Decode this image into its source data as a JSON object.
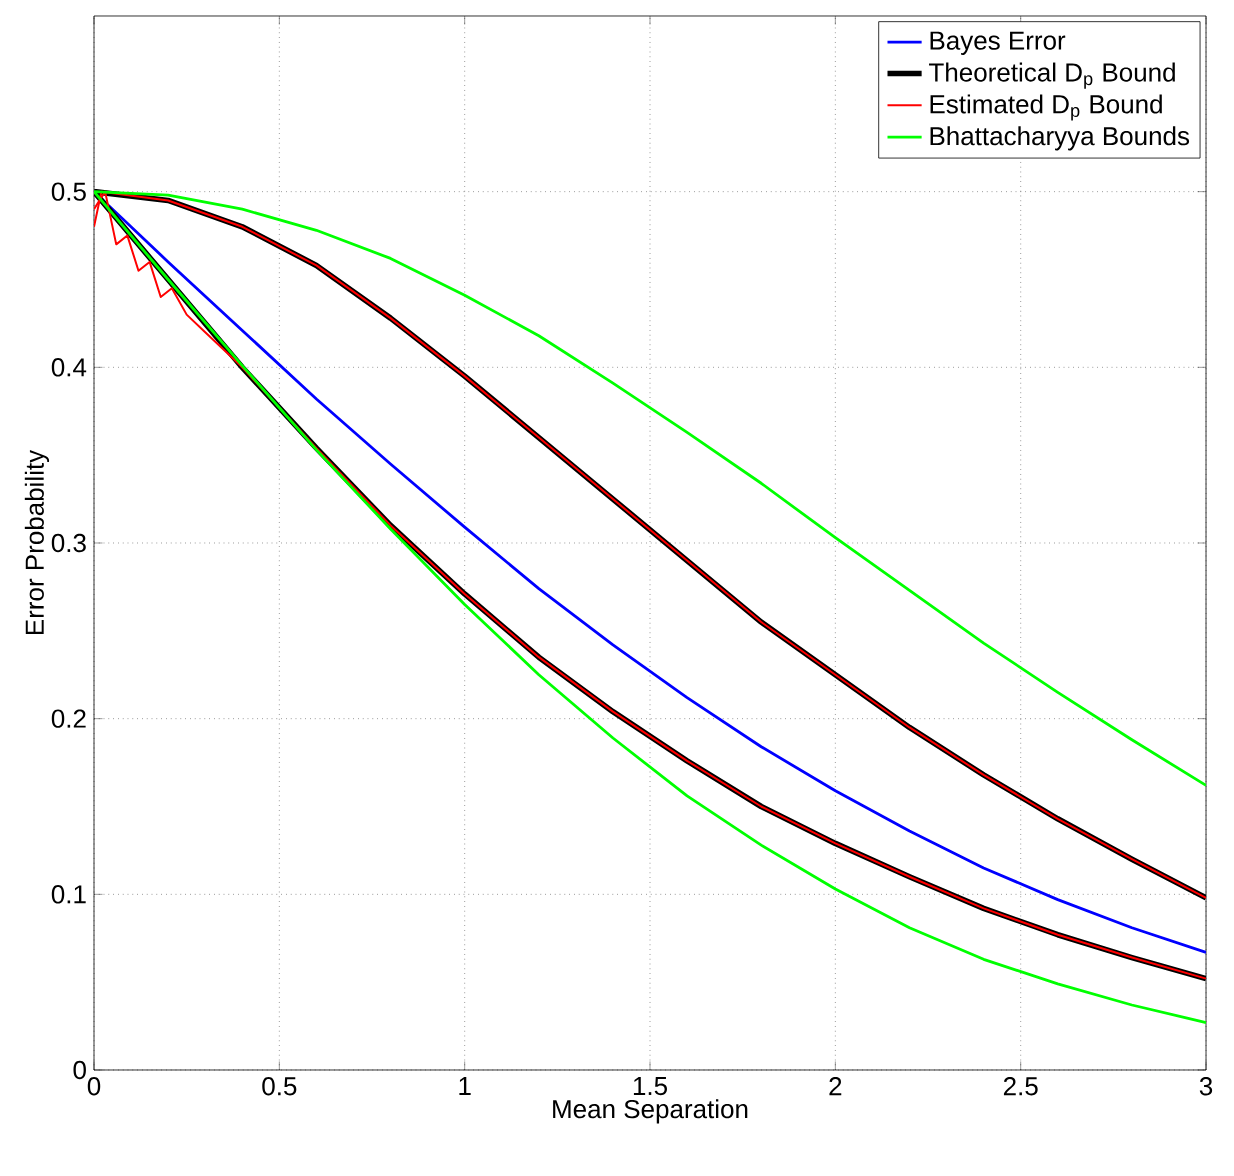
{
  "chart_data": {
    "type": "line",
    "xlabel": "Mean Separation",
    "ylabel": "Error Probability",
    "x": [
      0,
      0.2,
      0.4,
      0.6,
      0.8,
      1.0,
      1.2,
      1.4,
      1.6,
      1.8,
      2.0,
      2.2,
      2.4,
      2.6,
      2.8,
      3.0
    ],
    "series": [
      {
        "name": "Bayes Error",
        "color": "#0000ff",
        "values": [
          0.5,
          0.46,
          0.421,
          0.382,
          0.345,
          0.309,
          0.274,
          0.242,
          0.212,
          0.184,
          0.159,
          0.136,
          0.115,
          0.097,
          0.081,
          0.067
        ]
      },
      {
        "name": "Theoretical D$_{p}$ Bound",
        "color": "#000000",
        "values": [
          0.5,
          0.495,
          0.48,
          0.458,
          0.428,
          0.395,
          0.36,
          0.325,
          0.29,
          0.255,
          0.225,
          0.195,
          0.168,
          0.143,
          0.12,
          0.098
        ]
      },
      {
        "color": "#000000",
        "values": [
          0.5,
          0.45,
          0.4,
          0.354,
          0.31,
          0.271,
          0.235,
          0.204,
          0.176,
          0.15,
          0.129,
          0.11,
          0.092,
          0.077,
          0.064,
          0.052
        ]
      },
      {
        "name": "Estimated D$_{p}$ Bound",
        "color": "#ff0000",
        "x": [
          0,
          0.02,
          0.2,
          0.4,
          0.6,
          0.8,
          1.0,
          1.2,
          1.4,
          1.6,
          1.8,
          2.0,
          2.2,
          2.4,
          2.6,
          2.8,
          3.0
        ],
        "values": [
          0.48,
          0.5,
          0.495,
          0.48,
          0.458,
          0.428,
          0.395,
          0.36,
          0.325,
          0.29,
          0.255,
          0.225,
          0.195,
          0.168,
          0.143,
          0.12,
          0.098
        ]
      },
      {
        "color": "#ff0000",
        "x": [
          0,
          0.03,
          0.06,
          0.09,
          0.12,
          0.15,
          0.18,
          0.21,
          0.25,
          0.3,
          0.4,
          0.6,
          0.8,
          1.0,
          1.2,
          1.4,
          1.6,
          1.8,
          2.0,
          2.2,
          2.4,
          2.6,
          2.8,
          3.0
        ],
        "values": [
          0.49,
          0.5,
          0.47,
          0.475,
          0.455,
          0.46,
          0.44,
          0.445,
          0.43,
          0.42,
          0.4,
          0.354,
          0.31,
          0.271,
          0.235,
          0.204,
          0.176,
          0.15,
          0.129,
          0.11,
          0.092,
          0.077,
          0.064,
          0.052
        ]
      },
      {
        "name": "Bhattacharyya Bounds",
        "color": "#00ff00",
        "values": [
          0.5,
          0.498,
          0.49,
          0.478,
          0.462,
          0.441,
          0.418,
          0.391,
          0.363,
          0.334,
          0.303,
          0.273,
          0.243,
          0.215,
          0.188,
          0.162
        ]
      },
      {
        "color": "#00ff00",
        "values": [
          0.5,
          0.45,
          0.401,
          0.353,
          0.308,
          0.265,
          0.225,
          0.189,
          0.156,
          0.128,
          0.103,
          0.081,
          0.063,
          0.049,
          0.037,
          0.027
        ]
      }
    ],
    "xlim": [
      0,
      3
    ],
    "ylim": [
      0,
      0.6
    ],
    "xticks": [
      0,
      0.5,
      1,
      1.5,
      2,
      2.5,
      3
    ],
    "yticks": [
      0,
      0.1,
      0.2,
      0.3,
      0.4,
      0.5
    ],
    "grid": true,
    "legend": "top right"
  }
}
